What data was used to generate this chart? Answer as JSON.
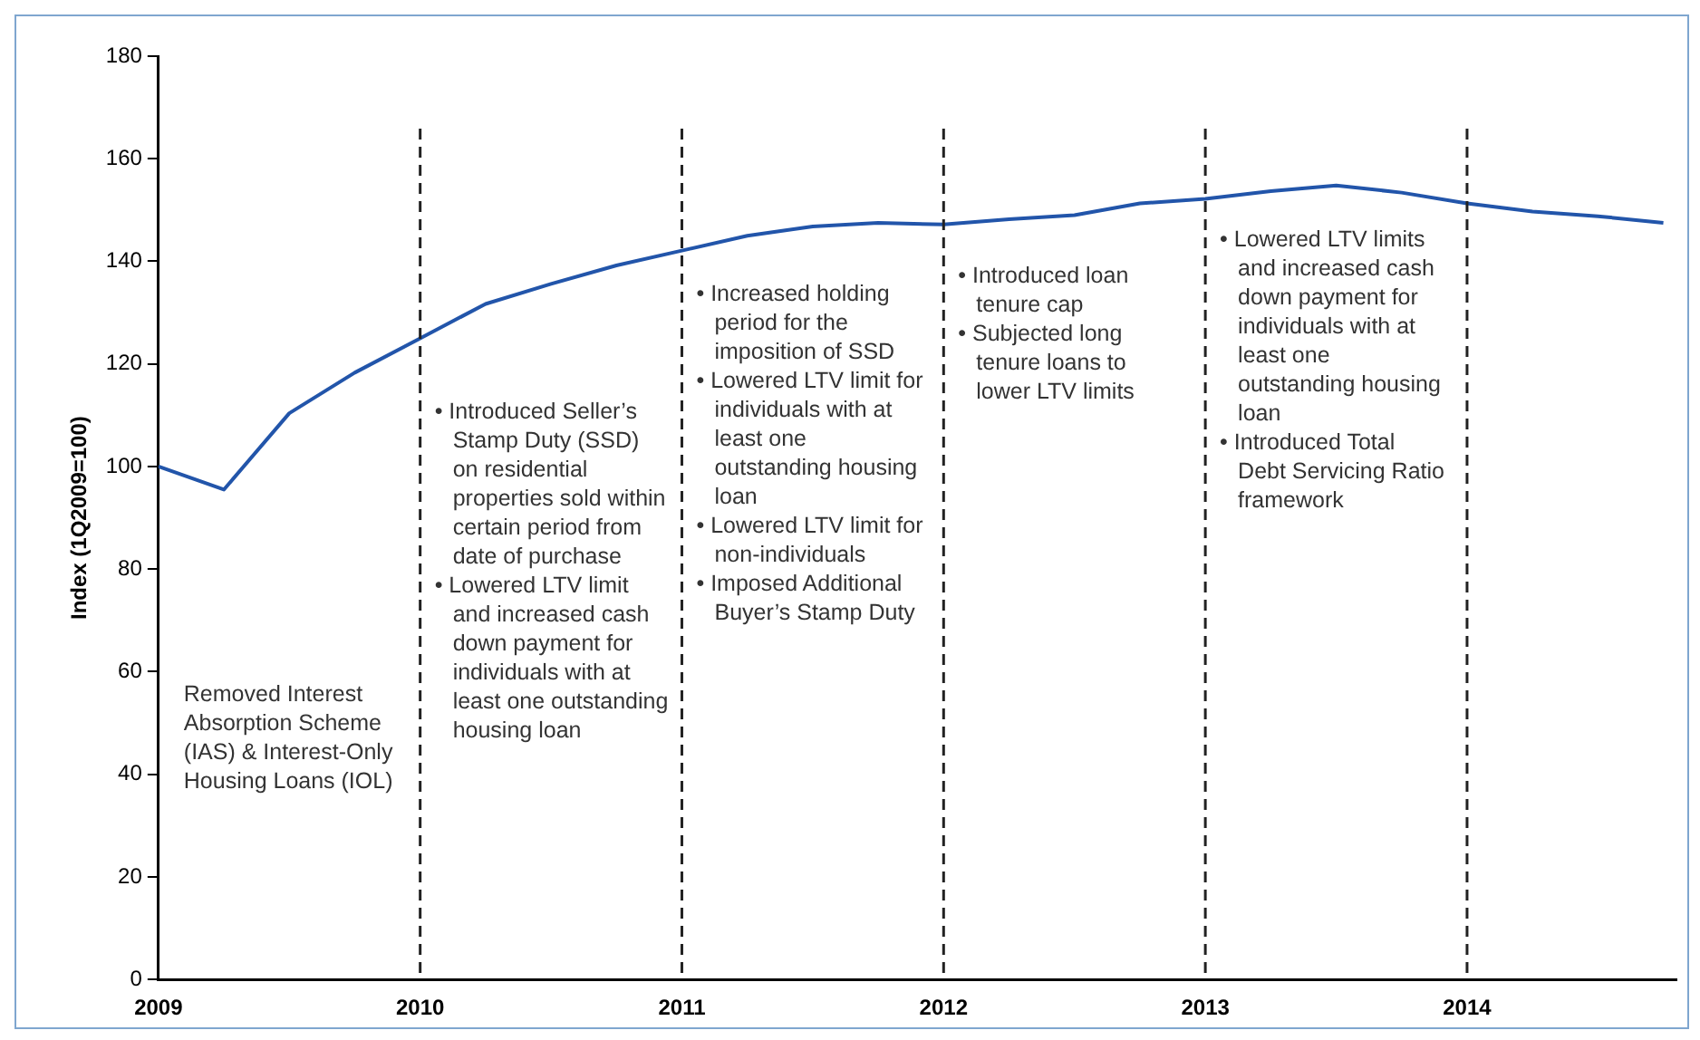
{
  "chart_data": {
    "type": "line",
    "ylabel": "Index (1Q2009=100)",
    "x": [
      2009,
      2009.25,
      2009.5,
      2009.75,
      2010,
      2010.25,
      2010.5,
      2010.75,
      2011,
      2011.25,
      2011.5,
      2011.75,
      2012,
      2012.25,
      2012.5,
      2012.75,
      2013,
      2013.25,
      2013.5,
      2013.75,
      2014,
      2014.25,
      2014.5,
      2014.75
    ],
    "series": [
      {
        "color": "#2255aa",
        "values": [
          100,
          95.5,
          110.4,
          118.3,
          125,
          131.7,
          135.6,
          139.2,
          142.1,
          145,
          146.8,
          147.5,
          147.2,
          148.2,
          149,
          151.3,
          152.2,
          153.7,
          154.8,
          153.4,
          151.3,
          149.7,
          148.8,
          147.5
        ]
      }
    ],
    "xlim": [
      2009,
      2014.8
    ],
    "xticks": [
      2009,
      2010,
      2011,
      2012,
      2013,
      2014
    ],
    "ylim": [
      0,
      180
    ],
    "yticks": [
      0,
      20,
      40,
      60,
      80,
      100,
      120,
      140,
      160,
      180
    ],
    "grid": false,
    "legend": false,
    "marker": "none",
    "line_style": "solid",
    "annotations": [
      "Removed Interest Absorption Scheme (IAS) & Interest-Only Housing Loans (IOL)"
    ],
    "ref_lines": [
      {
        "axis": "x",
        "value": 2010,
        "line_style": "dashed",
        "color": "#222222",
        "label": "• Introduced Seller’s Stamp Duty (SSD) on residential properties sold within certain period from date of purchase\n• Lowered LTV limit and increased cash down payment for individuals with at least one outstanding housing loan"
      },
      {
        "axis": "x",
        "value": 2011,
        "line_style": "dashed",
        "color": "#222222",
        "label": "• Increased holding period for the imposition of SSD\n• Lowered LTV limit for individuals with at least one outstanding housing loan\n• Lowered LTV limit for non-individuals\n• Imposed Additional Buyer’s Stamp Duty"
      },
      {
        "axis": "x",
        "value": 2012,
        "line_style": "dashed",
        "color": "#222222",
        "label": "• Introduced loan tenure cap\n• Subjected long tenure loans to lower LTV limits"
      },
      {
        "axis": "x",
        "value": 2013,
        "line_style": "dashed",
        "color": "#222222",
        "label": "• Lowered LTV limits and increased cash down payment for individuals with at least one outstanding housing loan\n• Introduced Total Debt Servicing Ratio framework"
      },
      {
        "axis": "x",
        "value": 2014,
        "line_style": "dashed",
        "color": "#222222"
      }
    ]
  }
}
